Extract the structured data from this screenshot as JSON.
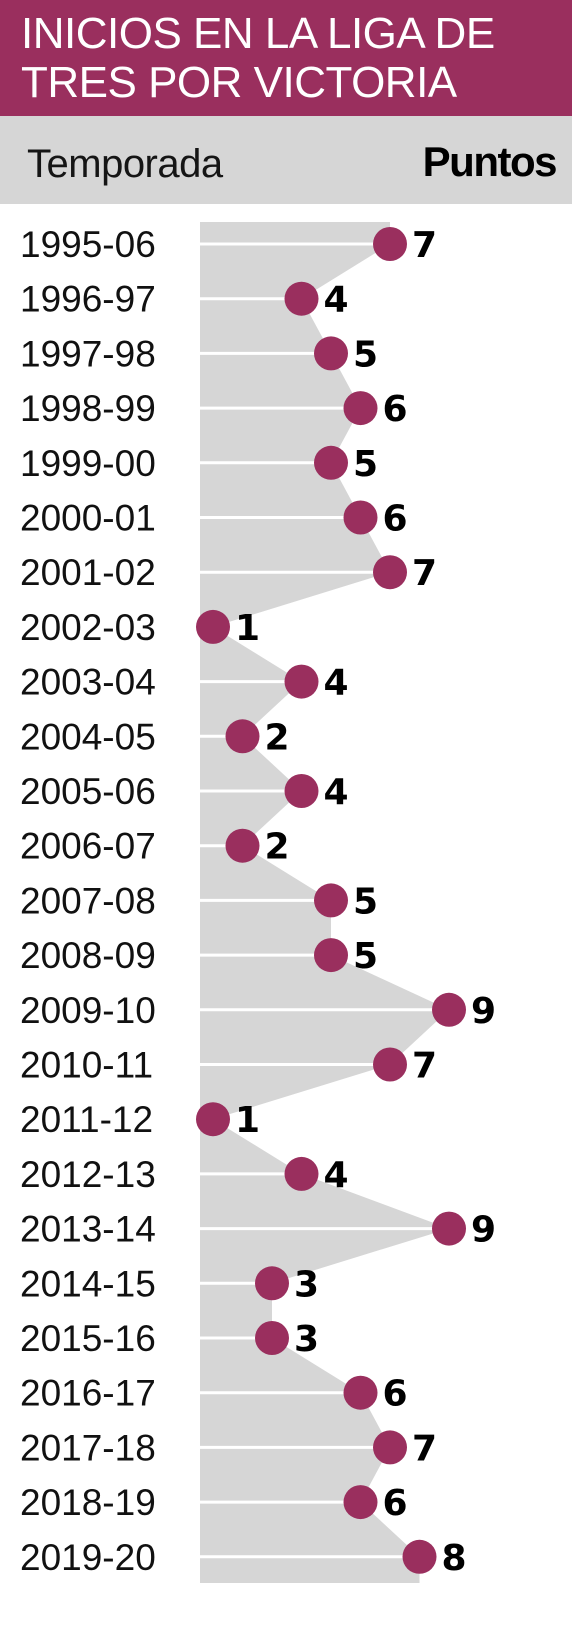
{
  "title": "INICIOS EN LA LIGA DE TRES POR VICTORIA",
  "header": {
    "season_label": "Temporada",
    "points_label": "Puntos"
  },
  "colors": {
    "title_background": "#9a2f5e",
    "header_background": "#d6d6d6",
    "area_fill": "#d6d6d6",
    "marker": "#9a2f5e",
    "gridline": "#ffffff"
  },
  "chart_data": {
    "type": "area",
    "orientation": "horizontal",
    "title": "INICIOS EN LA LIGA DE TRES POR VICTORIA",
    "xlabel": "Puntos",
    "ylabel": "Temporada",
    "grid": true,
    "categories": [
      "1995-06",
      "1996-97",
      "1997-98",
      "1998-99",
      "1999-00",
      "2000-01",
      "2001-02",
      "2002-03",
      "2003-04",
      "2004-05",
      "2005-06",
      "2006-07",
      "2007-08",
      "2008-09",
      "2009-10",
      "2010-11",
      "2011-12",
      "2012-13",
      "2013-14",
      "2014-15",
      "2015-16",
      "2016-17",
      "2017-18",
      "2018-19",
      "2019-20"
    ],
    "values": [
      7,
      4,
      5,
      6,
      5,
      6,
      7,
      1,
      4,
      2,
      4,
      2,
      5,
      5,
      9,
      7,
      1,
      4,
      9,
      3,
      3,
      6,
      7,
      6,
      8
    ]
  }
}
